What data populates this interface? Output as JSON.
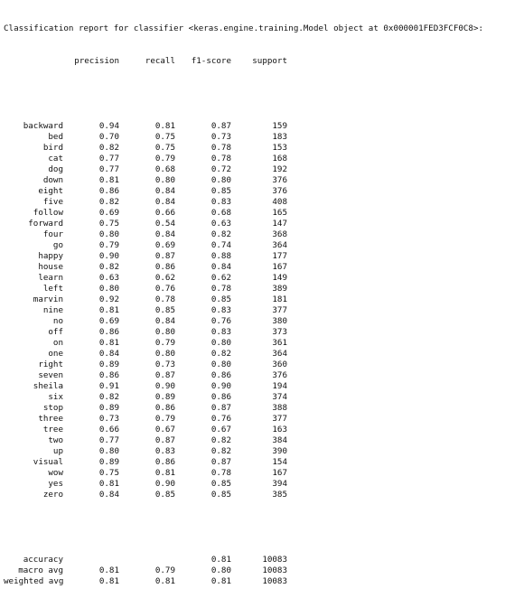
{
  "report": {
    "title": "Classification report for classifier <keras.engine.training.Model object at 0x000001FED3FCF0C8>:",
    "headers": {
      "precision": "precision",
      "recall": "recall",
      "f1_score": "f1-score",
      "support": "support"
    },
    "rows": [
      {
        "label": "backward",
        "precision": "0.94",
        "recall": "0.81",
        "f1": "0.87",
        "support": "159"
      },
      {
        "label": "bed",
        "precision": "0.70",
        "recall": "0.75",
        "f1": "0.73",
        "support": "183"
      },
      {
        "label": "bird",
        "precision": "0.82",
        "recall": "0.75",
        "f1": "0.78",
        "support": "153"
      },
      {
        "label": "cat",
        "precision": "0.77",
        "recall": "0.79",
        "f1": "0.78",
        "support": "168"
      },
      {
        "label": "dog",
        "precision": "0.77",
        "recall": "0.68",
        "f1": "0.72",
        "support": "192"
      },
      {
        "label": "down",
        "precision": "0.81",
        "recall": "0.80",
        "f1": "0.80",
        "support": "376"
      },
      {
        "label": "eight",
        "precision": "0.86",
        "recall": "0.84",
        "f1": "0.85",
        "support": "376"
      },
      {
        "label": "five",
        "precision": "0.82",
        "recall": "0.84",
        "f1": "0.83",
        "support": "408"
      },
      {
        "label": "follow",
        "precision": "0.69",
        "recall": "0.66",
        "f1": "0.68",
        "support": "165"
      },
      {
        "label": "forward",
        "precision": "0.75",
        "recall": "0.54",
        "f1": "0.63",
        "support": "147"
      },
      {
        "label": "four",
        "precision": "0.80",
        "recall": "0.84",
        "f1": "0.82",
        "support": "368"
      },
      {
        "label": "go",
        "precision": "0.79",
        "recall": "0.69",
        "f1": "0.74",
        "support": "364"
      },
      {
        "label": "happy",
        "precision": "0.90",
        "recall": "0.87",
        "f1": "0.88",
        "support": "177"
      },
      {
        "label": "house",
        "precision": "0.82",
        "recall": "0.86",
        "f1": "0.84",
        "support": "167"
      },
      {
        "label": "learn",
        "precision": "0.63",
        "recall": "0.62",
        "f1": "0.62",
        "support": "149"
      },
      {
        "label": "left",
        "precision": "0.80",
        "recall": "0.76",
        "f1": "0.78",
        "support": "389"
      },
      {
        "label": "marvin",
        "precision": "0.92",
        "recall": "0.78",
        "f1": "0.85",
        "support": "181"
      },
      {
        "label": "nine",
        "precision": "0.81",
        "recall": "0.85",
        "f1": "0.83",
        "support": "377"
      },
      {
        "label": "no",
        "precision": "0.69",
        "recall": "0.84",
        "f1": "0.76",
        "support": "380"
      },
      {
        "label": "off",
        "precision": "0.86",
        "recall": "0.80",
        "f1": "0.83",
        "support": "373"
      },
      {
        "label": "on",
        "precision": "0.81",
        "recall": "0.79",
        "f1": "0.80",
        "support": "361"
      },
      {
        "label": "one",
        "precision": "0.84",
        "recall": "0.80",
        "f1": "0.82",
        "support": "364"
      },
      {
        "label": "right",
        "precision": "0.89",
        "recall": "0.73",
        "f1": "0.80",
        "support": "360"
      },
      {
        "label": "seven",
        "precision": "0.86",
        "recall": "0.87",
        "f1": "0.86",
        "support": "376"
      },
      {
        "label": "sheila",
        "precision": "0.91",
        "recall": "0.90",
        "f1": "0.90",
        "support": "194"
      },
      {
        "label": "six",
        "precision": "0.82",
        "recall": "0.89",
        "f1": "0.86",
        "support": "374"
      },
      {
        "label": "stop",
        "precision": "0.89",
        "recall": "0.86",
        "f1": "0.87",
        "support": "388"
      },
      {
        "label": "three",
        "precision": "0.73",
        "recall": "0.79",
        "f1": "0.76",
        "support": "377"
      },
      {
        "label": "tree",
        "precision": "0.66",
        "recall": "0.67",
        "f1": "0.67",
        "support": "163"
      },
      {
        "label": "two",
        "precision": "0.77",
        "recall": "0.87",
        "f1": "0.82",
        "support": "384"
      },
      {
        "label": "up",
        "precision": "0.80",
        "recall": "0.83",
        "f1": "0.82",
        "support": "390"
      },
      {
        "label": "visual",
        "precision": "0.89",
        "recall": "0.86",
        "f1": "0.87",
        "support": "154"
      },
      {
        "label": "wow",
        "precision": "0.75",
        "recall": "0.81",
        "f1": "0.78",
        "support": "167"
      },
      {
        "label": "yes",
        "precision": "0.81",
        "recall": "0.90",
        "f1": "0.85",
        "support": "394"
      },
      {
        "label": "zero",
        "precision": "0.84",
        "recall": "0.85",
        "f1": "0.85",
        "support": "385"
      }
    ],
    "summary": [
      {
        "label": "accuracy",
        "precision": "",
        "recall": "",
        "f1": "0.81",
        "support": "10083"
      },
      {
        "label": "macro avg",
        "precision": "0.81",
        "recall": "0.79",
        "f1": "0.80",
        "support": "10083"
      },
      {
        "label": "weighted avg",
        "precision": "0.81",
        "recall": "0.81",
        "f1": "0.81",
        "support": "10083"
      }
    ]
  }
}
